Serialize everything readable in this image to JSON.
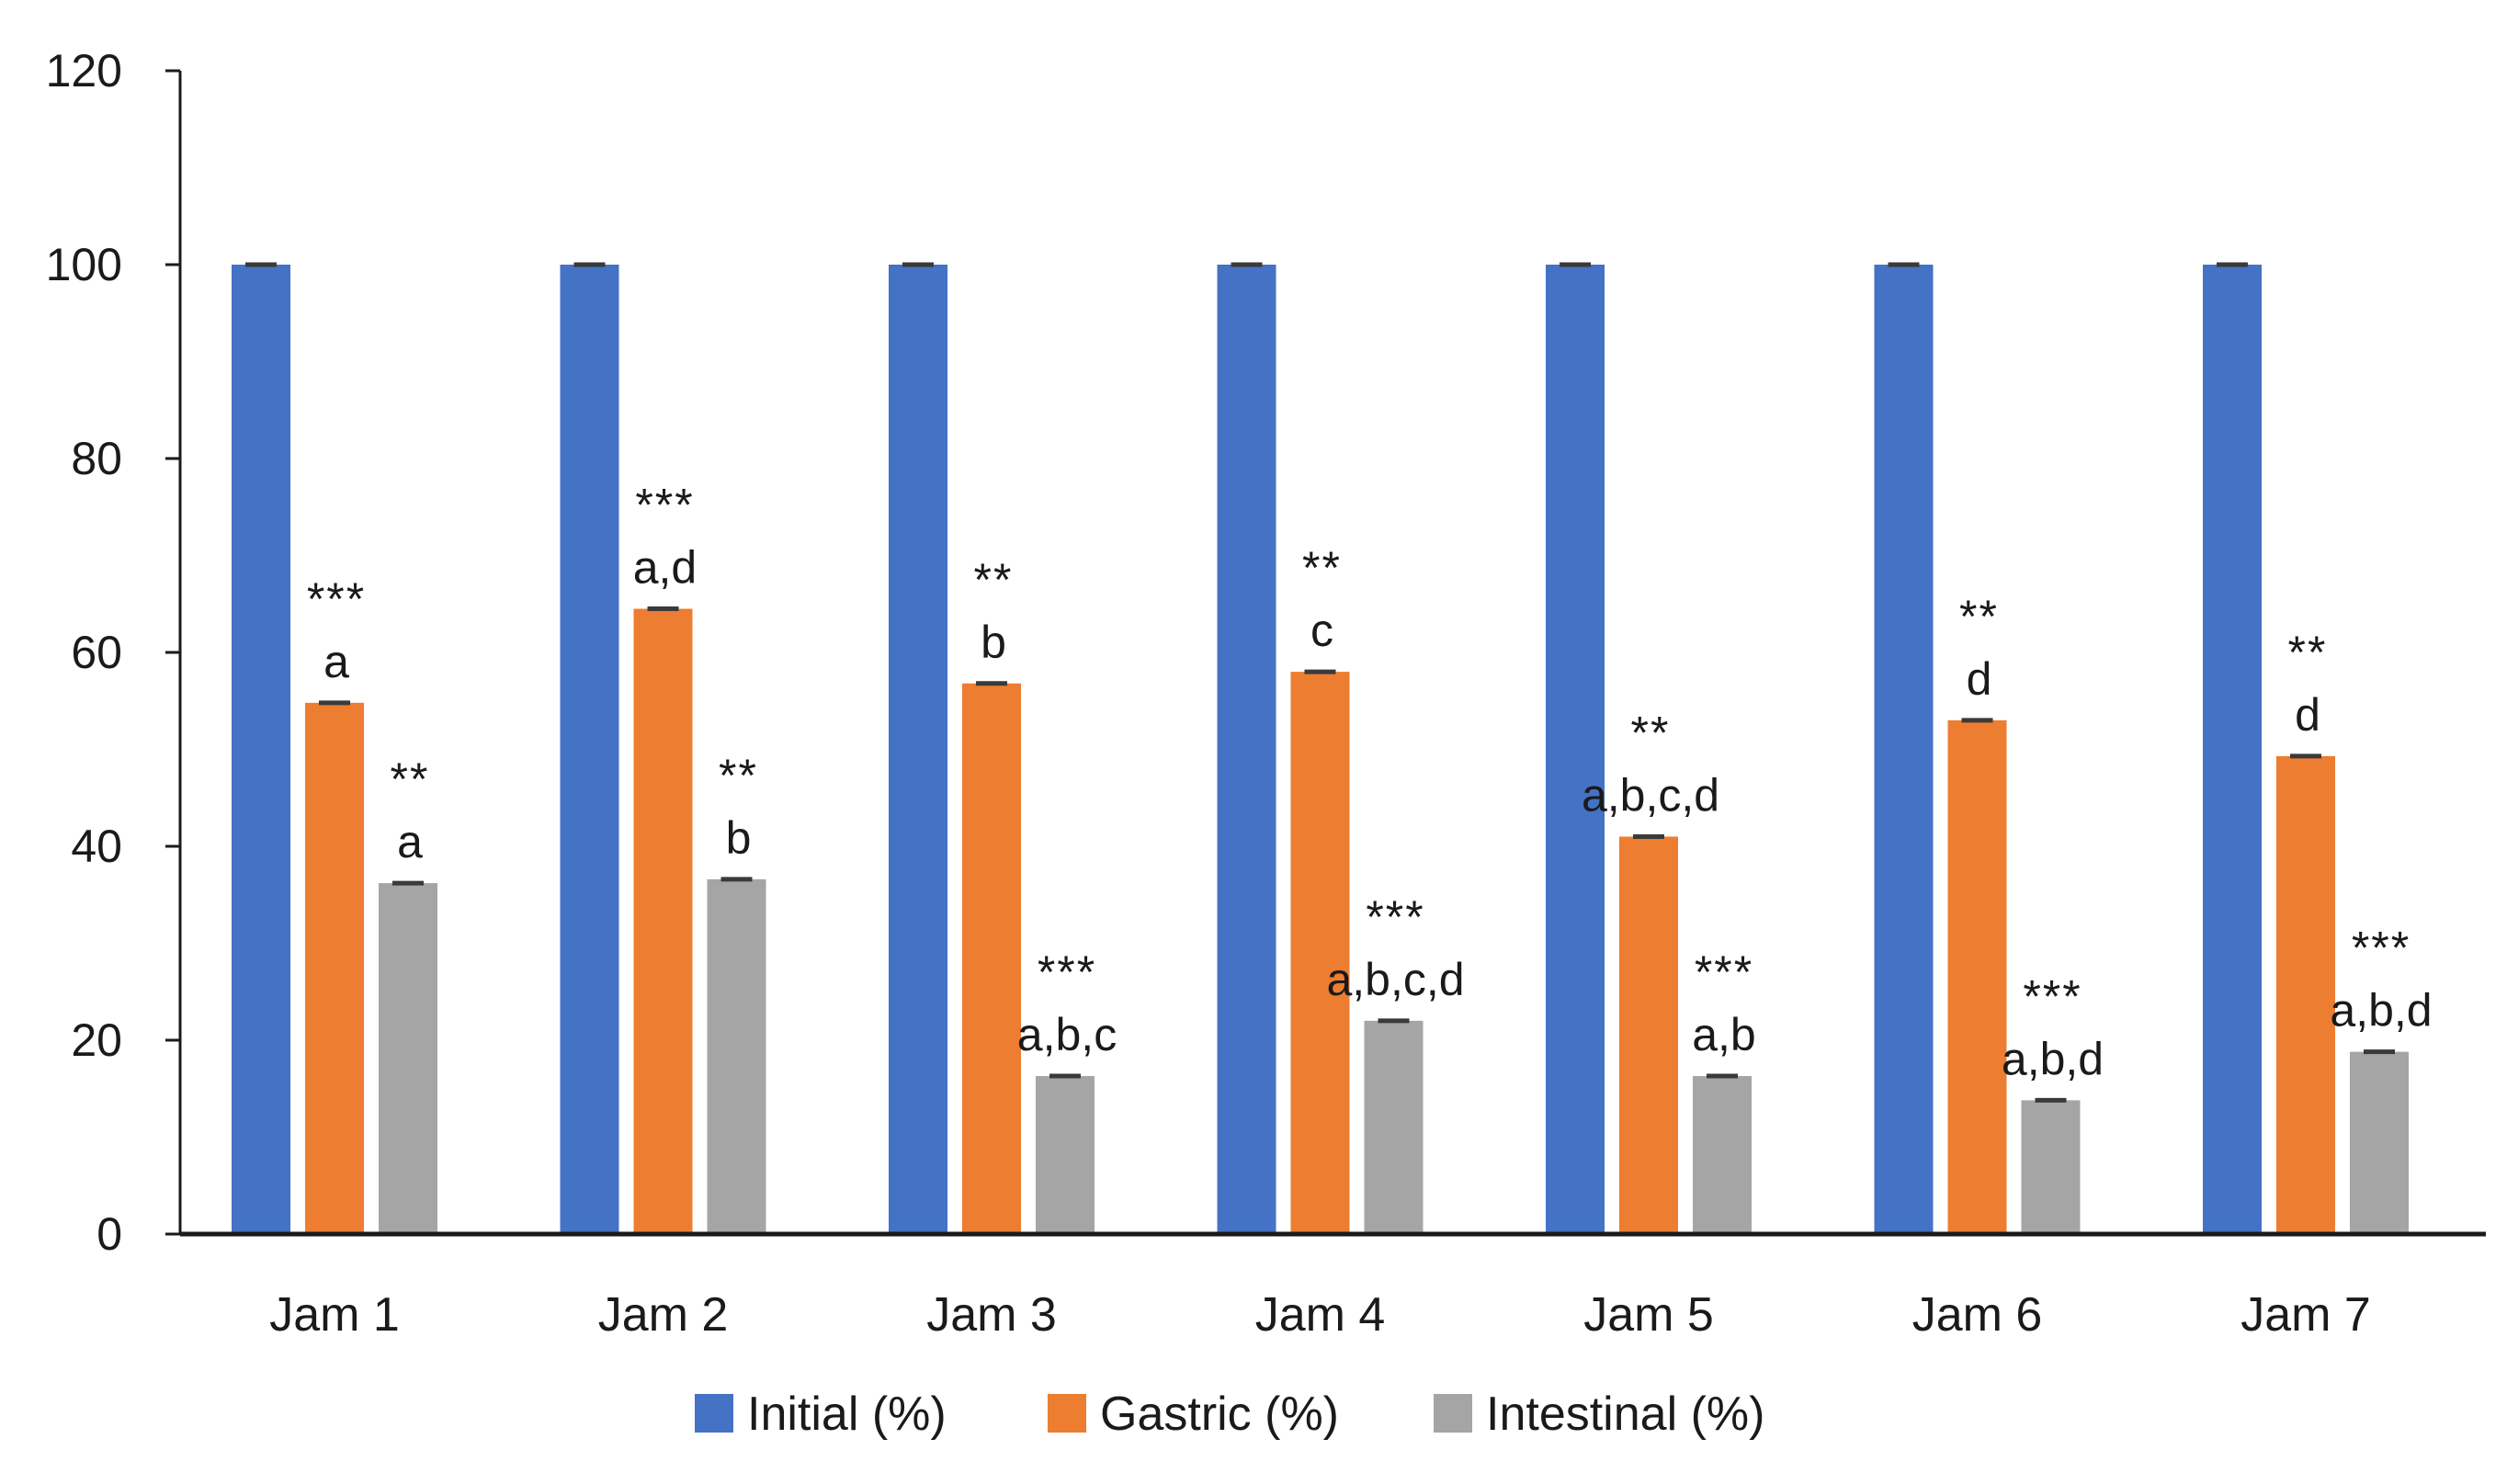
{
  "chart_data": {
    "type": "bar",
    "title": "",
    "xlabel": "",
    "ylabel": "",
    "ylim": [
      0,
      120
    ],
    "yticks": [
      0,
      20,
      40,
      60,
      80,
      100,
      120
    ],
    "categories": [
      "Jam 1",
      "Jam 2",
      "Jam 3",
      "Jam 4",
      "Jam 5",
      "Jam 6",
      "Jam 7"
    ],
    "series": [
      {
        "name": "Initial (%)",
        "color": "#4472C4",
        "values": [
          100,
          100,
          100,
          100,
          100,
          100,
          100
        ],
        "significance": [
          "",
          "",
          "",
          "",
          "",
          "",
          ""
        ],
        "letters": [
          "",
          "",
          "",
          "",
          "",
          "",
          ""
        ]
      },
      {
        "name": "Gastric (%)",
        "color": "#ED7D31",
        "values": [
          54.8,
          64.5,
          56.8,
          58.0,
          41.0,
          53.0,
          49.3
        ],
        "significance": [
          "***",
          "***",
          "**",
          "**",
          "**",
          "**",
          "**"
        ],
        "letters": [
          "a",
          "a,d",
          "b",
          "c",
          "a,b,c,d",
          "d",
          "d"
        ]
      },
      {
        "name": "Intestinal (%)",
        "color": "#A5A5A5",
        "values": [
          36.2,
          36.6,
          16.3,
          22.0,
          16.3,
          13.8,
          18.8
        ],
        "significance": [
          "**",
          "**",
          "***",
          "***",
          "***",
          "***",
          "***"
        ],
        "letters": [
          "a",
          "b",
          "a,b,c",
          "a,b,c,d",
          "a,b",
          "a,b,d",
          "a,b,d"
        ]
      }
    ],
    "error_bars": true,
    "grid": false,
    "legend_position": "bottom"
  }
}
